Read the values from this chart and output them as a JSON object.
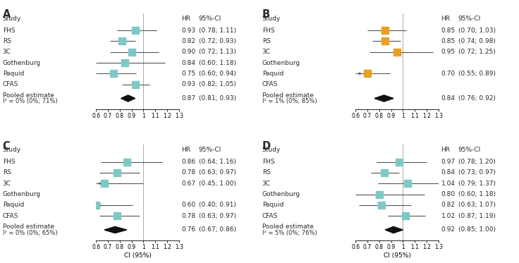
{
  "panels": [
    {
      "label": "A",
      "studies": [
        "FHS",
        "RS",
        "3C",
        "Gothenburg",
        "Paquid",
        "CFAS"
      ],
      "hr": [
        0.93,
        0.82,
        0.9,
        0.84,
        0.75,
        0.93
      ],
      "ci_lo": [
        0.78,
        0.72,
        0.72,
        0.6,
        0.6,
        0.82
      ],
      "ci_hi": [
        1.11,
        0.93,
        1.13,
        1.18,
        0.94,
        1.05
      ],
      "na": [
        false,
        false,
        false,
        false,
        false,
        false
      ],
      "arrow_lo": [
        false,
        false,
        false,
        false,
        false,
        false
      ],
      "arrow_hi": [
        false,
        false,
        false,
        false,
        false,
        false
      ],
      "pooled_hr": 0.87,
      "pooled_lo": 0.81,
      "pooled_hi": 0.93,
      "i2_text": "I² = 0% (0%; 71%)",
      "color": "#7ec8c8",
      "hr_vals": [
        "0.93",
        "0.82",
        "0.90",
        "0.84",
        "0.75",
        "0.93"
      ],
      "ci_texts": [
        "(0.78; 1.11)",
        "(0.72; 0.93)",
        "(0.72; 1.13)",
        "(0.60; 1.18)",
        "(0.60; 0.94)",
        "(0.82; 1.05)"
      ],
      "pooled_text": "(0.81; 0.93)",
      "xlabel": ""
    },
    {
      "label": "B",
      "studies": [
        "FHS",
        "RS",
        "3C",
        "Gothenburg",
        "Paquid",
        "CFAS"
      ],
      "hr": [
        0.85,
        0.85,
        0.95,
        null,
        0.7,
        null
      ],
      "ci_lo": [
        0.7,
        0.74,
        0.72,
        null,
        0.55,
        null
      ],
      "ci_hi": [
        1.03,
        0.98,
        1.25,
        null,
        0.89,
        null
      ],
      "na": [
        false,
        false,
        false,
        true,
        false,
        true
      ],
      "arrow_lo": [
        false,
        false,
        false,
        false,
        true,
        false
      ],
      "arrow_hi": [
        false,
        false,
        false,
        false,
        false,
        false
      ],
      "pooled_hr": 0.84,
      "pooled_lo": 0.76,
      "pooled_hi": 0.92,
      "i2_text": "I² = 1% (0%; 85%)",
      "color": "#e8a020",
      "hr_vals": [
        "0.85",
        "0.85",
        "0.95",
        "",
        "0.70",
        ""
      ],
      "ci_texts": [
        "(0.70; 1.03)",
        "(0.74; 0.98)",
        "(0.72; 1.25)",
        "",
        "(0.55; 0.89)",
        ""
      ],
      "pooled_text": "(0.76; 0.92)",
      "xlabel": ""
    },
    {
      "label": "C",
      "studies": [
        "FHS",
        "RS",
        "3C",
        "Gothenburg",
        "Paquid",
        "CFAS"
      ],
      "hr": [
        0.86,
        0.78,
        0.67,
        null,
        0.6,
        0.78
      ],
      "ci_lo": [
        0.64,
        0.63,
        0.45,
        null,
        0.4,
        0.63
      ],
      "ci_hi": [
        1.16,
        0.97,
        1.0,
        null,
        0.91,
        0.97
      ],
      "na": [
        false,
        false,
        false,
        true,
        false,
        false
      ],
      "arrow_lo": [
        false,
        false,
        true,
        false,
        false,
        false
      ],
      "arrow_hi": [
        false,
        false,
        false,
        false,
        false,
        false
      ],
      "pooled_hr": 0.76,
      "pooled_lo": 0.67,
      "pooled_hi": 0.86,
      "i2_text": "I² = 0% (0%; 65%)",
      "color": "#7ec8c8",
      "hr_vals": [
        "0.86",
        "0.78",
        "0.67",
        "",
        "0.60",
        "0.78"
      ],
      "ci_texts": [
        "(0.64; 1.16)",
        "(0.63; 0.97)",
        "(0.45; 1.00)",
        "",
        "(0.40; 0.91)",
        "(0.63; 0.97)"
      ],
      "pooled_text": "(0.67; 0.86)",
      "xlabel": "CI (95%)"
    },
    {
      "label": "D",
      "studies": [
        "FHS",
        "RS",
        "3C",
        "Gothenburg",
        "Paquid",
        "CFAS"
      ],
      "hr": [
        0.97,
        0.84,
        1.04,
        0.8,
        0.82,
        1.02
      ],
      "ci_lo": [
        0.78,
        0.73,
        0.79,
        0.6,
        0.63,
        0.87
      ],
      "ci_hi": [
        1.2,
        0.97,
        1.37,
        1.18,
        1.07,
        1.19
      ],
      "na": [
        false,
        false,
        false,
        false,
        false,
        false
      ],
      "arrow_lo": [
        false,
        false,
        false,
        false,
        false,
        false
      ],
      "arrow_hi": [
        false,
        false,
        false,
        false,
        false,
        false
      ],
      "pooled_hr": 0.92,
      "pooled_lo": 0.85,
      "pooled_hi": 1.0,
      "i2_text": "I² = 5% (0%; 76%)",
      "color": "#7ec8c8",
      "hr_vals": [
        "0.97",
        "0.84",
        "1.04",
        "0.80",
        "0.82",
        "1.02"
      ],
      "ci_texts": [
        "(0.78; 1.20)",
        "(0.73; 0.97)",
        "(0.79; 1.37)",
        "(0.60; 1.18)",
        "(0.63; 1.07)",
        "(0.87; 1.19)"
      ],
      "pooled_text": "(0.85; 1.00)",
      "xlabel": "CI (95%)"
    }
  ],
  "xlim": [
    0.6,
    1.3
  ],
  "xticks": [
    0.6,
    0.7,
    0.8,
    0.9,
    1.0,
    1.1,
    1.2,
    1.3
  ],
  "bg_color": "#ffffff",
  "text_color": "#2a2a2a",
  "font_size": 6.5,
  "ref_line": 1.0
}
